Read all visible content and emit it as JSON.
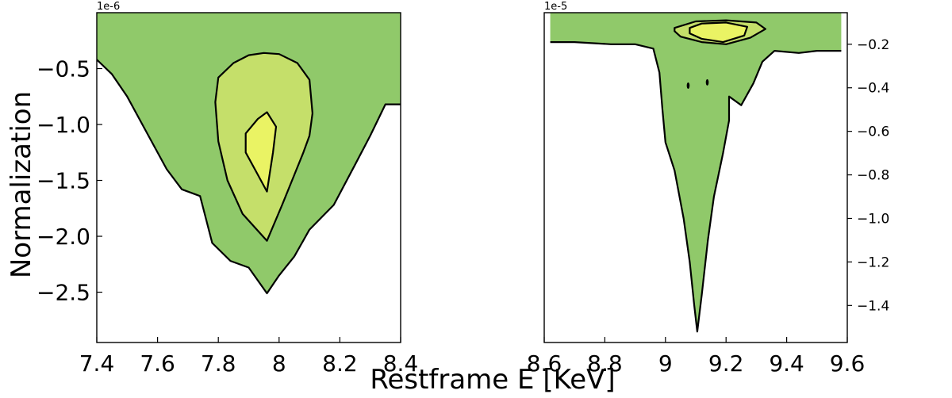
{
  "figure": {
    "ylabel": "Normalization",
    "xlabel": "Restframe E [KeV]"
  },
  "colors": {
    "outer": "#90c96a",
    "middle": "#c5df6a",
    "inner": "#eaf364",
    "line": "#000000",
    "background": "#ffffff"
  },
  "chart_data": [
    {
      "type": "contour",
      "title": "",
      "xlabel": "",
      "ylabel": "",
      "xlim": [
        7.4,
        8.4
      ],
      "ylim": [
        -2.95,
        0.0
      ],
      "offset_text": "1e-6",
      "x_ticks": [
        7.4,
        7.6,
        7.8,
        8.0,
        8.2,
        8.4
      ],
      "x_tick_labels": [
        "7.4",
        "7.6",
        "7.8",
        "8",
        "8.2",
        "8.4"
      ],
      "y_ticks": [
        -0.5,
        -1.0,
        -1.5,
        -2.0,
        -2.5
      ],
      "y_tick_labels": [
        "−0.5",
        "−1.0",
        "−1.5",
        "−2.0",
        "−2.5"
      ],
      "y_axis_side": "left",
      "contours": [
        {
          "level": "outer",
          "points": [
            [
              7.4,
              -0.42
            ],
            [
              7.45,
              -0.55
            ],
            [
              7.5,
              -0.75
            ],
            [
              7.56,
              -1.05
            ],
            [
              7.63,
              -1.4
            ],
            [
              7.68,
              -1.58
            ],
            [
              7.74,
              -1.64
            ],
            [
              7.78,
              -2.06
            ],
            [
              7.84,
              -2.22
            ],
            [
              7.9,
              -2.28
            ],
            [
              7.96,
              -2.51
            ],
            [
              8.0,
              -2.35
            ],
            [
              8.05,
              -2.18
            ],
            [
              8.1,
              -1.94
            ],
            [
              8.18,
              -1.72
            ],
            [
              8.25,
              -1.36
            ],
            [
              8.3,
              -1.1
            ],
            [
              8.35,
              -0.82
            ],
            [
              8.4,
              -0.82
            ]
          ]
        },
        {
          "level": "middle",
          "points": [
            [
              7.79,
              -0.8
            ],
            [
              7.8,
              -0.58
            ],
            [
              7.85,
              -0.45
            ],
            [
              7.9,
              -0.38
            ],
            [
              7.95,
              -0.36
            ],
            [
              8.0,
              -0.37
            ],
            [
              8.06,
              -0.45
            ],
            [
              8.1,
              -0.6
            ],
            [
              8.11,
              -0.9
            ],
            [
              8.1,
              -1.1
            ],
            [
              8.08,
              -1.25
            ],
            [
              8.05,
              -1.45
            ],
            [
              8.01,
              -1.72
            ],
            [
              7.96,
              -2.04
            ],
            [
              7.88,
              -1.8
            ],
            [
              7.83,
              -1.5
            ],
            [
              7.8,
              -1.15
            ]
          ]
        },
        {
          "level": "inner",
          "points": [
            [
              7.96,
              -0.89
            ],
            [
              7.99,
              -1.02
            ],
            [
              7.98,
              -1.25
            ],
            [
              7.96,
              -1.6
            ],
            [
              7.92,
              -1.4
            ],
            [
              7.89,
              -1.25
            ],
            [
              7.89,
              -1.08
            ],
            [
              7.93,
              -0.95
            ]
          ]
        }
      ],
      "islands": []
    },
    {
      "type": "contour",
      "title": "",
      "xlabel": "",
      "ylabel": "",
      "xlim": [
        8.6,
        9.6
      ],
      "ylim": [
        -1.57,
        -0.055
      ],
      "offset_text": "1e-5",
      "x_ticks": [
        8.6,
        8.8,
        9.0,
        9.2,
        9.4,
        9.6
      ],
      "x_tick_labels": [
        "8.6",
        "8.8",
        "9",
        "9.2",
        "9.4",
        "9.6"
      ],
      "y_ticks": [
        -0.2,
        -0.4,
        -0.6,
        -0.8,
        -1.0,
        -1.2,
        -1.4
      ],
      "y_tick_labels": [
        "−0.2",
        "−0.4",
        "−0.6",
        "−0.8",
        "−1.0",
        "−1.2",
        "−1.4"
      ],
      "y_axis_side": "right",
      "contours": [
        {
          "level": "outer",
          "points": [
            [
              8.62,
              -0.19
            ],
            [
              8.7,
              -0.19
            ],
            [
              8.82,
              -0.2
            ],
            [
              8.9,
              -0.2
            ],
            [
              8.96,
              -0.22
            ],
            [
              8.98,
              -0.33
            ],
            [
              8.99,
              -0.5
            ],
            [
              9.0,
              -0.65
            ],
            [
              9.03,
              -0.78
            ],
            [
              9.06,
              -1.0
            ],
            [
              9.08,
              -1.2
            ],
            [
              9.095,
              -1.4
            ],
            [
              9.105,
              -1.52
            ],
            [
              9.12,
              -1.35
            ],
            [
              9.14,
              -1.1
            ],
            [
              9.16,
              -0.9
            ],
            [
              9.19,
              -0.7
            ],
            [
              9.21,
              -0.55
            ],
            [
              9.21,
              -0.44
            ],
            [
              9.25,
              -0.48
            ],
            [
              9.29,
              -0.38
            ],
            [
              9.32,
              -0.28
            ],
            [
              9.36,
              -0.23
            ],
            [
              9.44,
              -0.24
            ],
            [
              9.5,
              -0.23
            ],
            [
              9.58,
              -0.23
            ],
            [
              9.58,
              -0.055
            ],
            [
              8.62,
              -0.055
            ]
          ]
        },
        {
          "level": "middle",
          "points": [
            [
              9.03,
              -0.125
            ],
            [
              9.1,
              -0.095
            ],
            [
              9.2,
              -0.09
            ],
            [
              9.3,
              -0.1
            ],
            [
              9.33,
              -0.13
            ],
            [
              9.28,
              -0.17
            ],
            [
              9.2,
              -0.2
            ],
            [
              9.12,
              -0.19
            ],
            [
              9.05,
              -0.165
            ],
            [
              9.03,
              -0.14
            ]
          ]
        },
        {
          "level": "inner",
          "points": [
            [
              9.08,
              -0.125
            ],
            [
              9.12,
              -0.105
            ],
            [
              9.2,
              -0.1
            ],
            [
              9.27,
              -0.12
            ],
            [
              9.26,
              -0.16
            ],
            [
              9.19,
              -0.19
            ],
            [
              9.12,
              -0.175
            ],
            [
              9.08,
              -0.15
            ]
          ]
        }
      ],
      "islands": [
        [
          9.075,
          -0.39
        ],
        [
          9.138,
          -0.375
        ]
      ]
    }
  ]
}
